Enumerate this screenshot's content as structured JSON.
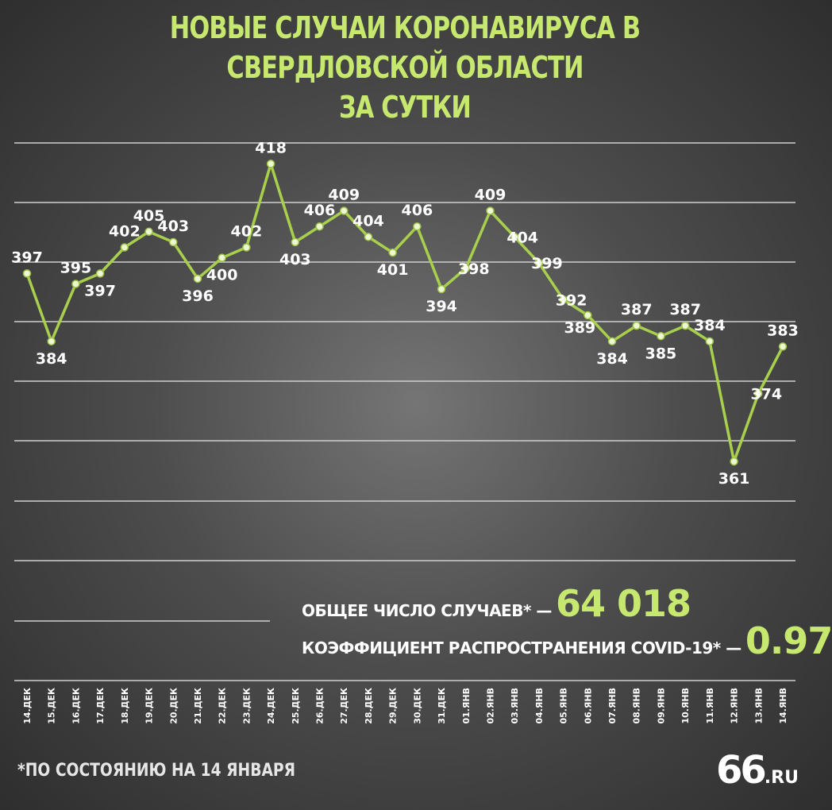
{
  "title_line1": "НОВЫЕ СЛУЧАИ КОРОНАВИРУСА В СВЕРДЛОВСКОЙ ОБЛАСТИ",
  "title_line2": "ЗА СУТКИ",
  "info": {
    "total_label": "ОБЩЕЕ ЧИСЛО СЛУЧАЕВ* —",
    "total_value": "64 018",
    "rate_label": "КОЭФФИЦИЕНТ РАСПРОСТРАНЕНИЯ COVID-19* —",
    "rate_value": "0.97"
  },
  "footnote": "*ПО СОСТОЯНИЮ НА 14 ЯНВАРЯ",
  "logo": {
    "main": "66",
    "suffix": ".RU"
  },
  "colors": {
    "accent": "#c7e86e",
    "line": "#a9d04d",
    "grid": "#cfcfcf"
  },
  "chart_data": {
    "type": "line",
    "title": "НОВЫЕ СЛУЧАИ КОРОНАВИРУСА В СВЕРДЛОВСКОЙ ОБЛАСТИ ЗА СУТКИ",
    "categories": [
      "14.ДЕК",
      "15.ДЕК",
      "16.ДЕК",
      "17.ДЕК",
      "18.ДЕК",
      "19.ДЕК",
      "20.ДЕК",
      "21.ДЕК",
      "22.ДЕК",
      "23.ДЕК",
      "24.ДЕК",
      "25.ДЕК",
      "26.ДЕК",
      "27.ДЕК",
      "28.ДЕК",
      "29.ДЕК",
      "30.ДЕК",
      "31.ДЕК",
      "01.ЯНВ",
      "02.ЯНВ",
      "03.ЯНВ",
      "04.ЯНВ",
      "05.ЯНВ",
      "06.ЯНВ",
      "07.ЯНВ",
      "08.ЯНВ",
      "09.ЯНВ",
      "10.ЯНВ",
      "11.ЯНВ",
      "12.ЯНВ",
      "13.ЯНВ",
      "14.ЯНВ"
    ],
    "values": [
      397,
      384,
      395,
      397,
      402,
      405,
      403,
      396,
      400,
      402,
      418,
      403,
      406,
      409,
      404,
      401,
      406,
      394,
      398,
      409,
      404,
      399,
      392,
      389,
      384,
      387,
      385,
      387,
      384,
      361,
      374,
      383
    ],
    "label_position": [
      "above",
      "below",
      "above",
      "below",
      "above",
      "above",
      "above",
      "below",
      "below",
      "above",
      "above",
      "below",
      "above",
      "above",
      "above",
      "below",
      "above",
      "below",
      "right",
      "above",
      "right",
      "right",
      "right",
      "left",
      "below",
      "above",
      "below",
      "above",
      "above",
      "below",
      "right",
      "above"
    ],
    "ylim": [
      342,
      422
    ],
    "grid": true
  }
}
